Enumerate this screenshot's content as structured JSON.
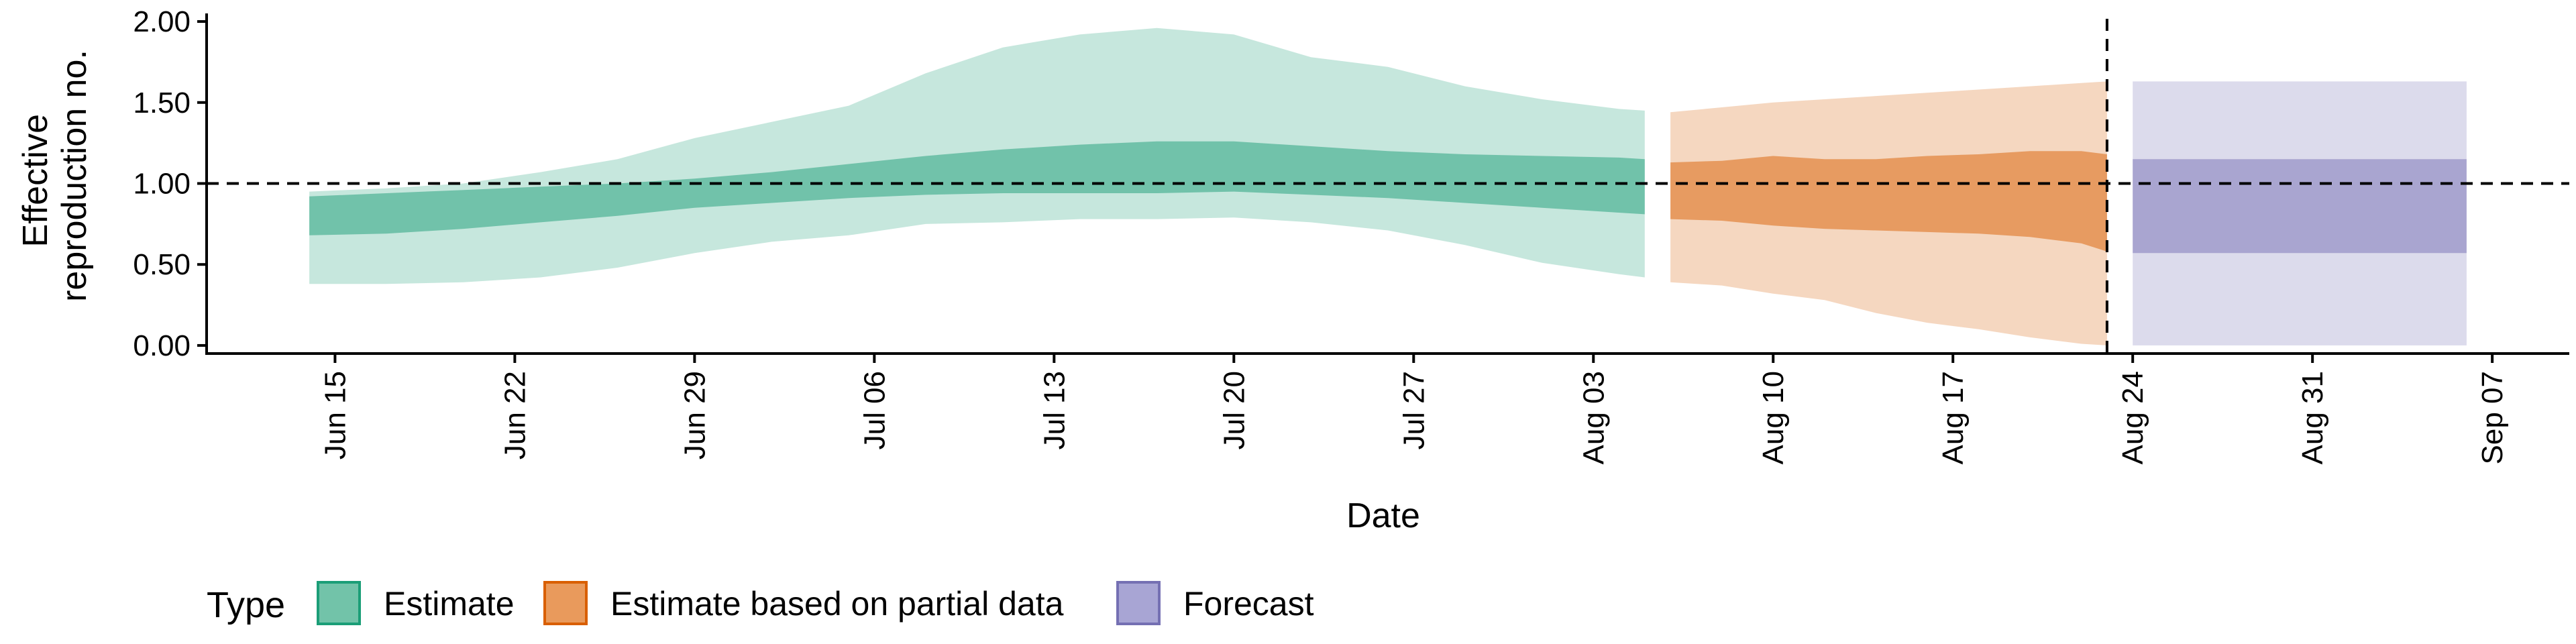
{
  "chart_data": {
    "type": "area",
    "xlabel": "Date",
    "ylabel_lines": [
      "Effective",
      "reproduction no."
    ],
    "xlim": [
      "2020-06-10",
      "2020-09-10"
    ],
    "ylim": [
      -0.05,
      2.05
    ],
    "y_ticks": [
      0.0,
      0.5,
      1.0,
      1.5,
      2.0
    ],
    "y_tick_labels": [
      "0.00",
      "0.50",
      "1.00",
      "1.50",
      "2.00"
    ],
    "x_ticks": [
      "2020-06-15",
      "2020-06-22",
      "2020-06-29",
      "2020-07-06",
      "2020-07-13",
      "2020-07-20",
      "2020-07-27",
      "2020-08-03",
      "2020-08-10",
      "2020-08-17",
      "2020-08-24",
      "2020-08-31",
      "2020-09-07"
    ],
    "x_tick_labels": [
      "Jun 15",
      "Jun 22",
      "Jun 29",
      "Jul 06",
      "Jul 13",
      "Jul 20",
      "Jul 27",
      "Aug 03",
      "Aug 10",
      "Aug 17",
      "Aug 24",
      "Aug 31",
      "Sep 07"
    ],
    "reference_line_y": 1.0,
    "forecast_start_line": "2020-08-23",
    "grid": false,
    "legend_placement": "bottom-left",
    "legend_title": "Type",
    "series": [
      {
        "name": "Estimate",
        "color": "#1b9e77",
        "x": [
          "2020-06-14",
          "2020-06-17",
          "2020-06-20",
          "2020-06-23",
          "2020-06-26",
          "2020-06-29",
          "2020-07-02",
          "2020-07-05",
          "2020-07-08",
          "2020-07-11",
          "2020-07-14",
          "2020-07-17",
          "2020-07-20",
          "2020-07-23",
          "2020-07-26",
          "2020-07-29",
          "2020-08-01",
          "2020-08-04",
          "2020-08-05"
        ],
        "lower_90": [
          0.38,
          0.38,
          0.39,
          0.42,
          0.48,
          0.57,
          0.64,
          0.68,
          0.75,
          0.76,
          0.78,
          0.78,
          0.79,
          0.76,
          0.71,
          0.62,
          0.51,
          0.44,
          0.42
        ],
        "upper_90": [
          0.95,
          0.97,
          1.0,
          1.07,
          1.15,
          1.28,
          1.38,
          1.48,
          1.68,
          1.84,
          1.92,
          1.96,
          1.92,
          1.78,
          1.72,
          1.6,
          1.52,
          1.46,
          1.45
        ],
        "lower_50": [
          0.68,
          0.69,
          0.72,
          0.76,
          0.8,
          0.85,
          0.88,
          0.91,
          0.93,
          0.94,
          0.94,
          0.94,
          0.95,
          0.93,
          0.91,
          0.88,
          0.85,
          0.82,
          0.81
        ],
        "upper_50": [
          0.92,
          0.94,
          0.96,
          0.98,
          1.0,
          1.03,
          1.07,
          1.12,
          1.17,
          1.21,
          1.24,
          1.26,
          1.26,
          1.23,
          1.2,
          1.18,
          1.17,
          1.16,
          1.15
        ]
      },
      {
        "name": "Estimate based on partial data",
        "color": "#d95f02",
        "x": [
          "2020-08-06",
          "2020-08-08",
          "2020-08-10",
          "2020-08-12",
          "2020-08-14",
          "2020-08-16",
          "2020-08-18",
          "2020-08-20",
          "2020-08-22",
          "2020-08-23"
        ],
        "lower_90": [
          0.39,
          0.37,
          0.32,
          0.28,
          0.2,
          0.14,
          0.1,
          0.05,
          0.01,
          0.0
        ],
        "upper_90": [
          1.44,
          1.47,
          1.5,
          1.52,
          1.54,
          1.56,
          1.58,
          1.6,
          1.62,
          1.63
        ],
        "lower_50": [
          0.78,
          0.77,
          0.74,
          0.72,
          0.71,
          0.7,
          0.69,
          0.67,
          0.63,
          0.58
        ],
        "upper_50": [
          1.13,
          1.14,
          1.17,
          1.15,
          1.15,
          1.17,
          1.18,
          1.2,
          1.2,
          1.18
        ]
      },
      {
        "name": "Forecast",
        "color": "#7570b3",
        "x": [
          "2020-08-24",
          "2020-09-06"
        ],
        "lower_90": [
          0.0,
          0.0
        ],
        "upper_90": [
          1.63,
          1.63
        ],
        "lower_50": [
          0.57,
          0.57
        ],
        "upper_50": [
          1.15,
          1.15
        ]
      }
    ]
  }
}
